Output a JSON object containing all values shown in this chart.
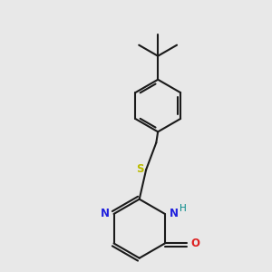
{
  "bg_color": "#e8e8e8",
  "bond_color": "#1a1a1a",
  "N_color": "#2020dd",
  "O_color": "#dd2020",
  "S_color": "#bbbb00",
  "H_color": "#008888",
  "lw": 1.5,
  "dbo": 0.018,
  "xlim": [
    -0.55,
    0.55
  ],
  "ylim": [
    -0.75,
    0.85
  ]
}
